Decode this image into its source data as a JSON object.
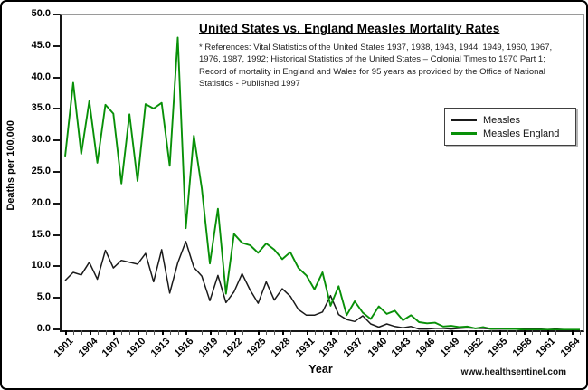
{
  "chart": {
    "title": "United States vs. England Measles Mortality Rates",
    "references": "* References: Vital Statistics of the United States 1937, 1938, 1943, 1944, 1949, 1960, 1967, 1976, 1987, 1992; Historical Statistics of the United States – Colonial Times to 1970 Part 1; Record of mortality in England and Wales for 95 years as provided by the Office of National Statistics - Published 1997",
    "xlabel": "Year",
    "ylabel": "Deaths per 100,000",
    "watermark": "www.healthsentinel.com"
  },
  "chart_data": {
    "type": "line",
    "title": "United States vs. England Measles Mortality Rates",
    "xlabel": "Year",
    "ylabel": "Deaths per 100,000",
    "grid": false,
    "legend_position": "upper right",
    "ylim": [
      0,
      50
    ],
    "y_tick_labels": [
      "0.0",
      "5.0",
      "10.0",
      "15.0",
      "20.0",
      "25.0",
      "30.0",
      "35.0",
      "40.0",
      "45.0",
      "50.0"
    ],
    "x_tick_labels": [
      "1901",
      "1904",
      "1907",
      "1910",
      "1913",
      "1916",
      "1919",
      "1922",
      "1925",
      "1928",
      "1931",
      "1934",
      "1937",
      "1940",
      "1943",
      "1946",
      "1949",
      "1952",
      "1955",
      "1958",
      "1961",
      "1964"
    ],
    "x": [
      1901,
      1902,
      1903,
      1904,
      1905,
      1906,
      1907,
      1908,
      1909,
      1910,
      1911,
      1912,
      1913,
      1914,
      1915,
      1916,
      1917,
      1918,
      1919,
      1920,
      1921,
      1922,
      1923,
      1924,
      1925,
      1926,
      1927,
      1928,
      1929,
      1930,
      1931,
      1932,
      1933,
      1934,
      1935,
      1936,
      1937,
      1938,
      1939,
      1940,
      1941,
      1942,
      1943,
      1944,
      1945,
      1946,
      1947,
      1948,
      1949,
      1950,
      1951,
      1952,
      1953,
      1954,
      1955,
      1956,
      1957,
      1958,
      1959,
      1960,
      1961,
      1962,
      1963,
      1964,
      1965
    ],
    "series": [
      {
        "name": "Measles",
        "region": "United States",
        "color": "#1a1a1a",
        "values": [
          7.9,
          9.2,
          8.8,
          10.8,
          8.1,
          12.7,
          9.9,
          11.1,
          10.8,
          10.5,
          12.2,
          7.7,
          12.8,
          5.9,
          10.7,
          14.1,
          10.0,
          8.6,
          4.7,
          8.7,
          4.4,
          6.1,
          9.0,
          6.4,
          4.3,
          7.7,
          4.8,
          6.6,
          5.4,
          3.3,
          2.4,
          2.4,
          2.9,
          5.5,
          2.5,
          1.7,
          1.4,
          2.3,
          1.0,
          0.5,
          1.0,
          0.6,
          0.4,
          0.6,
          0.2,
          0.2,
          0.3,
          0.3,
          0.2,
          0.3,
          0.4,
          0.3,
          0.3,
          0.2,
          0.2,
          0.2,
          0.2,
          0.2,
          0.2,
          0.2,
          0.1,
          0.2,
          0.1,
          0.1,
          0.1
        ]
      },
      {
        "name": "Measles England",
        "region": "England",
        "color": "#089008",
        "values": [
          27.6,
          39.3,
          28.0,
          36.4,
          26.6,
          35.8,
          34.4,
          23.3,
          34.3,
          23.7,
          35.9,
          35.2,
          36.1,
          26.1,
          46.5,
          16.2,
          30.9,
          22.5,
          10.6,
          19.3,
          5.8,
          15.3,
          13.9,
          13.5,
          12.3,
          13.8,
          12.8,
          11.3,
          12.4,
          9.9,
          8.7,
          6.5,
          9.2,
          3.9,
          7.0,
          2.4,
          4.6,
          2.8,
          1.8,
          3.8,
          2.6,
          3.1,
          1.6,
          2.4,
          1.3,
          1.1,
          1.2,
          0.6,
          0.7,
          0.5,
          0.6,
          0.3,
          0.5,
          0.2,
          0.3,
          0.2,
          0.2,
          0.1,
          0.1,
          0.1,
          0.1,
          0.1,
          0.1,
          0.1,
          0.1
        ]
      }
    ]
  }
}
